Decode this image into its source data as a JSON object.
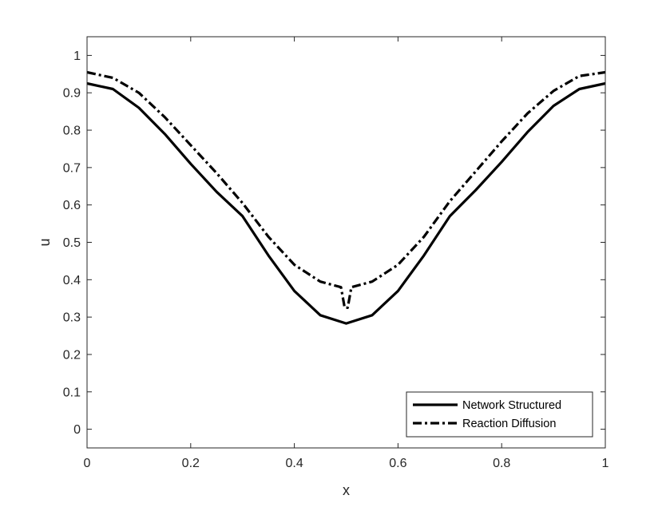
{
  "chart_data": {
    "type": "line",
    "xlabel": "x",
    "ylabel": "u",
    "xlim": [
      0,
      1
    ],
    "ylim": [
      -0.05,
      1.05
    ],
    "xticks": [
      0,
      0.2,
      0.4,
      0.6,
      0.8,
      1
    ],
    "xtick_labels": [
      "0",
      "0.2",
      "0.4",
      "0.6",
      "0.8",
      "1"
    ],
    "yticks": [
      0,
      0.1,
      0.2,
      0.3,
      0.4,
      0.5,
      0.6,
      0.7,
      0.8,
      0.9,
      1
    ],
    "ytick_labels": [
      "0",
      "0.1",
      "0.2",
      "0.3",
      "0.4",
      "0.5",
      "0.6",
      "0.7",
      "0.8",
      "0.9",
      "1"
    ],
    "grid": false,
    "legend_position": "bottom-right",
    "series": [
      {
        "name": "Network Structured",
        "style": "solid",
        "color": "#000000",
        "x": [
          0,
          0.05,
          0.1,
          0.15,
          0.2,
          0.25,
          0.3,
          0.35,
          0.4,
          0.45,
          0.5,
          0.55,
          0.6,
          0.65,
          0.7,
          0.75,
          0.8,
          0.85,
          0.9,
          0.95,
          1
        ],
        "y": [
          0.925,
          0.91,
          0.86,
          0.79,
          0.71,
          0.635,
          0.57,
          0.465,
          0.37,
          0.305,
          0.283,
          0.305,
          0.37,
          0.465,
          0.57,
          0.64,
          0.715,
          0.795,
          0.865,
          0.91,
          0.925
        ]
      },
      {
        "name": "Reaction Diffusion",
        "style": "dash-dot",
        "color": "#000000",
        "x": [
          0,
          0.05,
          0.1,
          0.15,
          0.2,
          0.25,
          0.3,
          0.35,
          0.4,
          0.45,
          0.49,
          0.497,
          0.503,
          0.51,
          0.55,
          0.6,
          0.65,
          0.7,
          0.75,
          0.8,
          0.85,
          0.9,
          0.95,
          1
        ],
        "y": [
          0.955,
          0.94,
          0.9,
          0.835,
          0.76,
          0.685,
          0.605,
          0.515,
          0.44,
          0.395,
          0.38,
          0.325,
          0.325,
          0.38,
          0.395,
          0.44,
          0.515,
          0.61,
          0.69,
          0.77,
          0.845,
          0.905,
          0.945,
          0.955
        ]
      }
    ]
  }
}
